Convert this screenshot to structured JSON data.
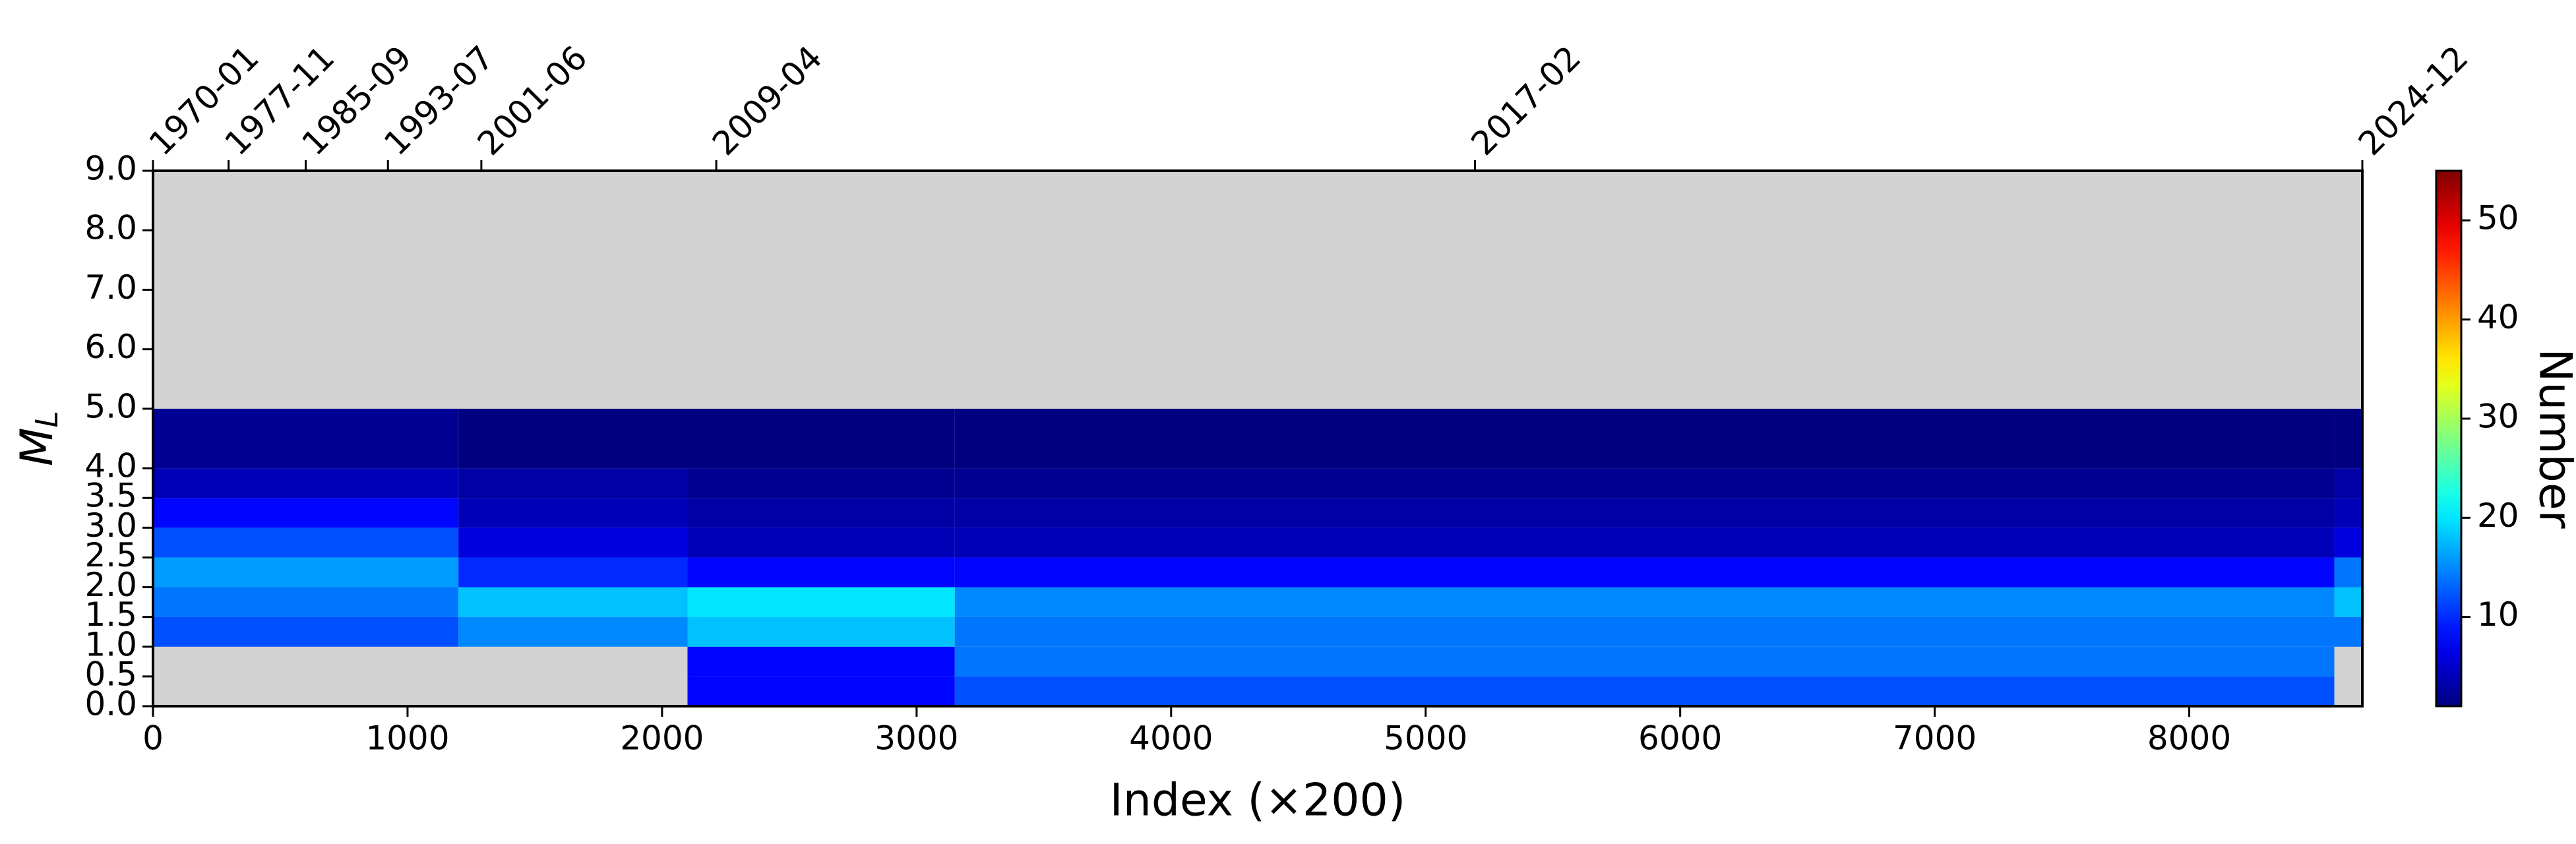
{
  "chart_data": {
    "type": "heatmap",
    "xlabel": "Index (×200)",
    "ylabel": "M",
    "ylabel_sub": "L",
    "colorbar_label": "Number",
    "cmap": "jet",
    "missing_color": "#d3d3d3",
    "xlim": [
      0,
      8680
    ],
    "ylim": [
      0,
      9
    ],
    "xticks": [
      0,
      1000,
      2000,
      3000,
      4000,
      5000,
      6000,
      7000,
      8000
    ],
    "yticks": [
      {
        "value": 0,
        "label": "0.0"
      },
      {
        "value": 0.5,
        "label": "0.5"
      },
      {
        "value": 1,
        "label": "1.0"
      },
      {
        "value": 1.5,
        "label": "1.5"
      },
      {
        "value": 2,
        "label": "2.0"
      },
      {
        "value": 2.5,
        "label": "2.5"
      },
      {
        "value": 3,
        "label": "3.0"
      },
      {
        "value": 3.5,
        "label": "3.5"
      },
      {
        "value": 4,
        "label": "4.0"
      },
      {
        "value": 5,
        "label": "5.0"
      },
      {
        "value": 6,
        "label": "6.0"
      },
      {
        "value": 7,
        "label": "7.0"
      },
      {
        "value": 8,
        "label": "8.0"
      },
      {
        "value": 9,
        "label": "9.0"
      }
    ],
    "x2ticks": [
      {
        "value": 0,
        "label": "1970-01"
      },
      {
        "value": 297,
        "label": "1977-11"
      },
      {
        "value": 600,
        "label": "1985-09"
      },
      {
        "value": 923,
        "label": "1993-07"
      },
      {
        "value": 1290,
        "label": "2001-06"
      },
      {
        "value": 2213,
        "label": "2009-04"
      },
      {
        "value": 5194,
        "label": "2017-02"
      },
      {
        "value": 8680,
        "label": "2024-12"
      }
    ],
    "clim": [
      1,
      55
    ],
    "cticks": [
      10,
      20,
      30,
      40,
      50
    ],
    "x_edges": [
      0,
      1200,
      2100,
      3150,
      8570,
      8680
    ],
    "y_edges": [
      0,
      0.5,
      1,
      1.5,
      2,
      2.5,
      3,
      3.5,
      4,
      5,
      9
    ],
    "z": [
      [
        null,
        null,
        8,
        12,
        null
      ],
      [
        null,
        null,
        8,
        14,
        null
      ],
      [
        12,
        15,
        18,
        14,
        14
      ],
      [
        14,
        18,
        20,
        15,
        18
      ],
      [
        16,
        10,
        8,
        8,
        14
      ],
      [
        12,
        6,
        4,
        4,
        6
      ],
      [
        8,
        4,
        3,
        3,
        4
      ],
      [
        4,
        3,
        2,
        2,
        3
      ],
      [
        2,
        1,
        1,
        1,
        1
      ],
      [
        null,
        null,
        null,
        null,
        null
      ]
    ]
  }
}
